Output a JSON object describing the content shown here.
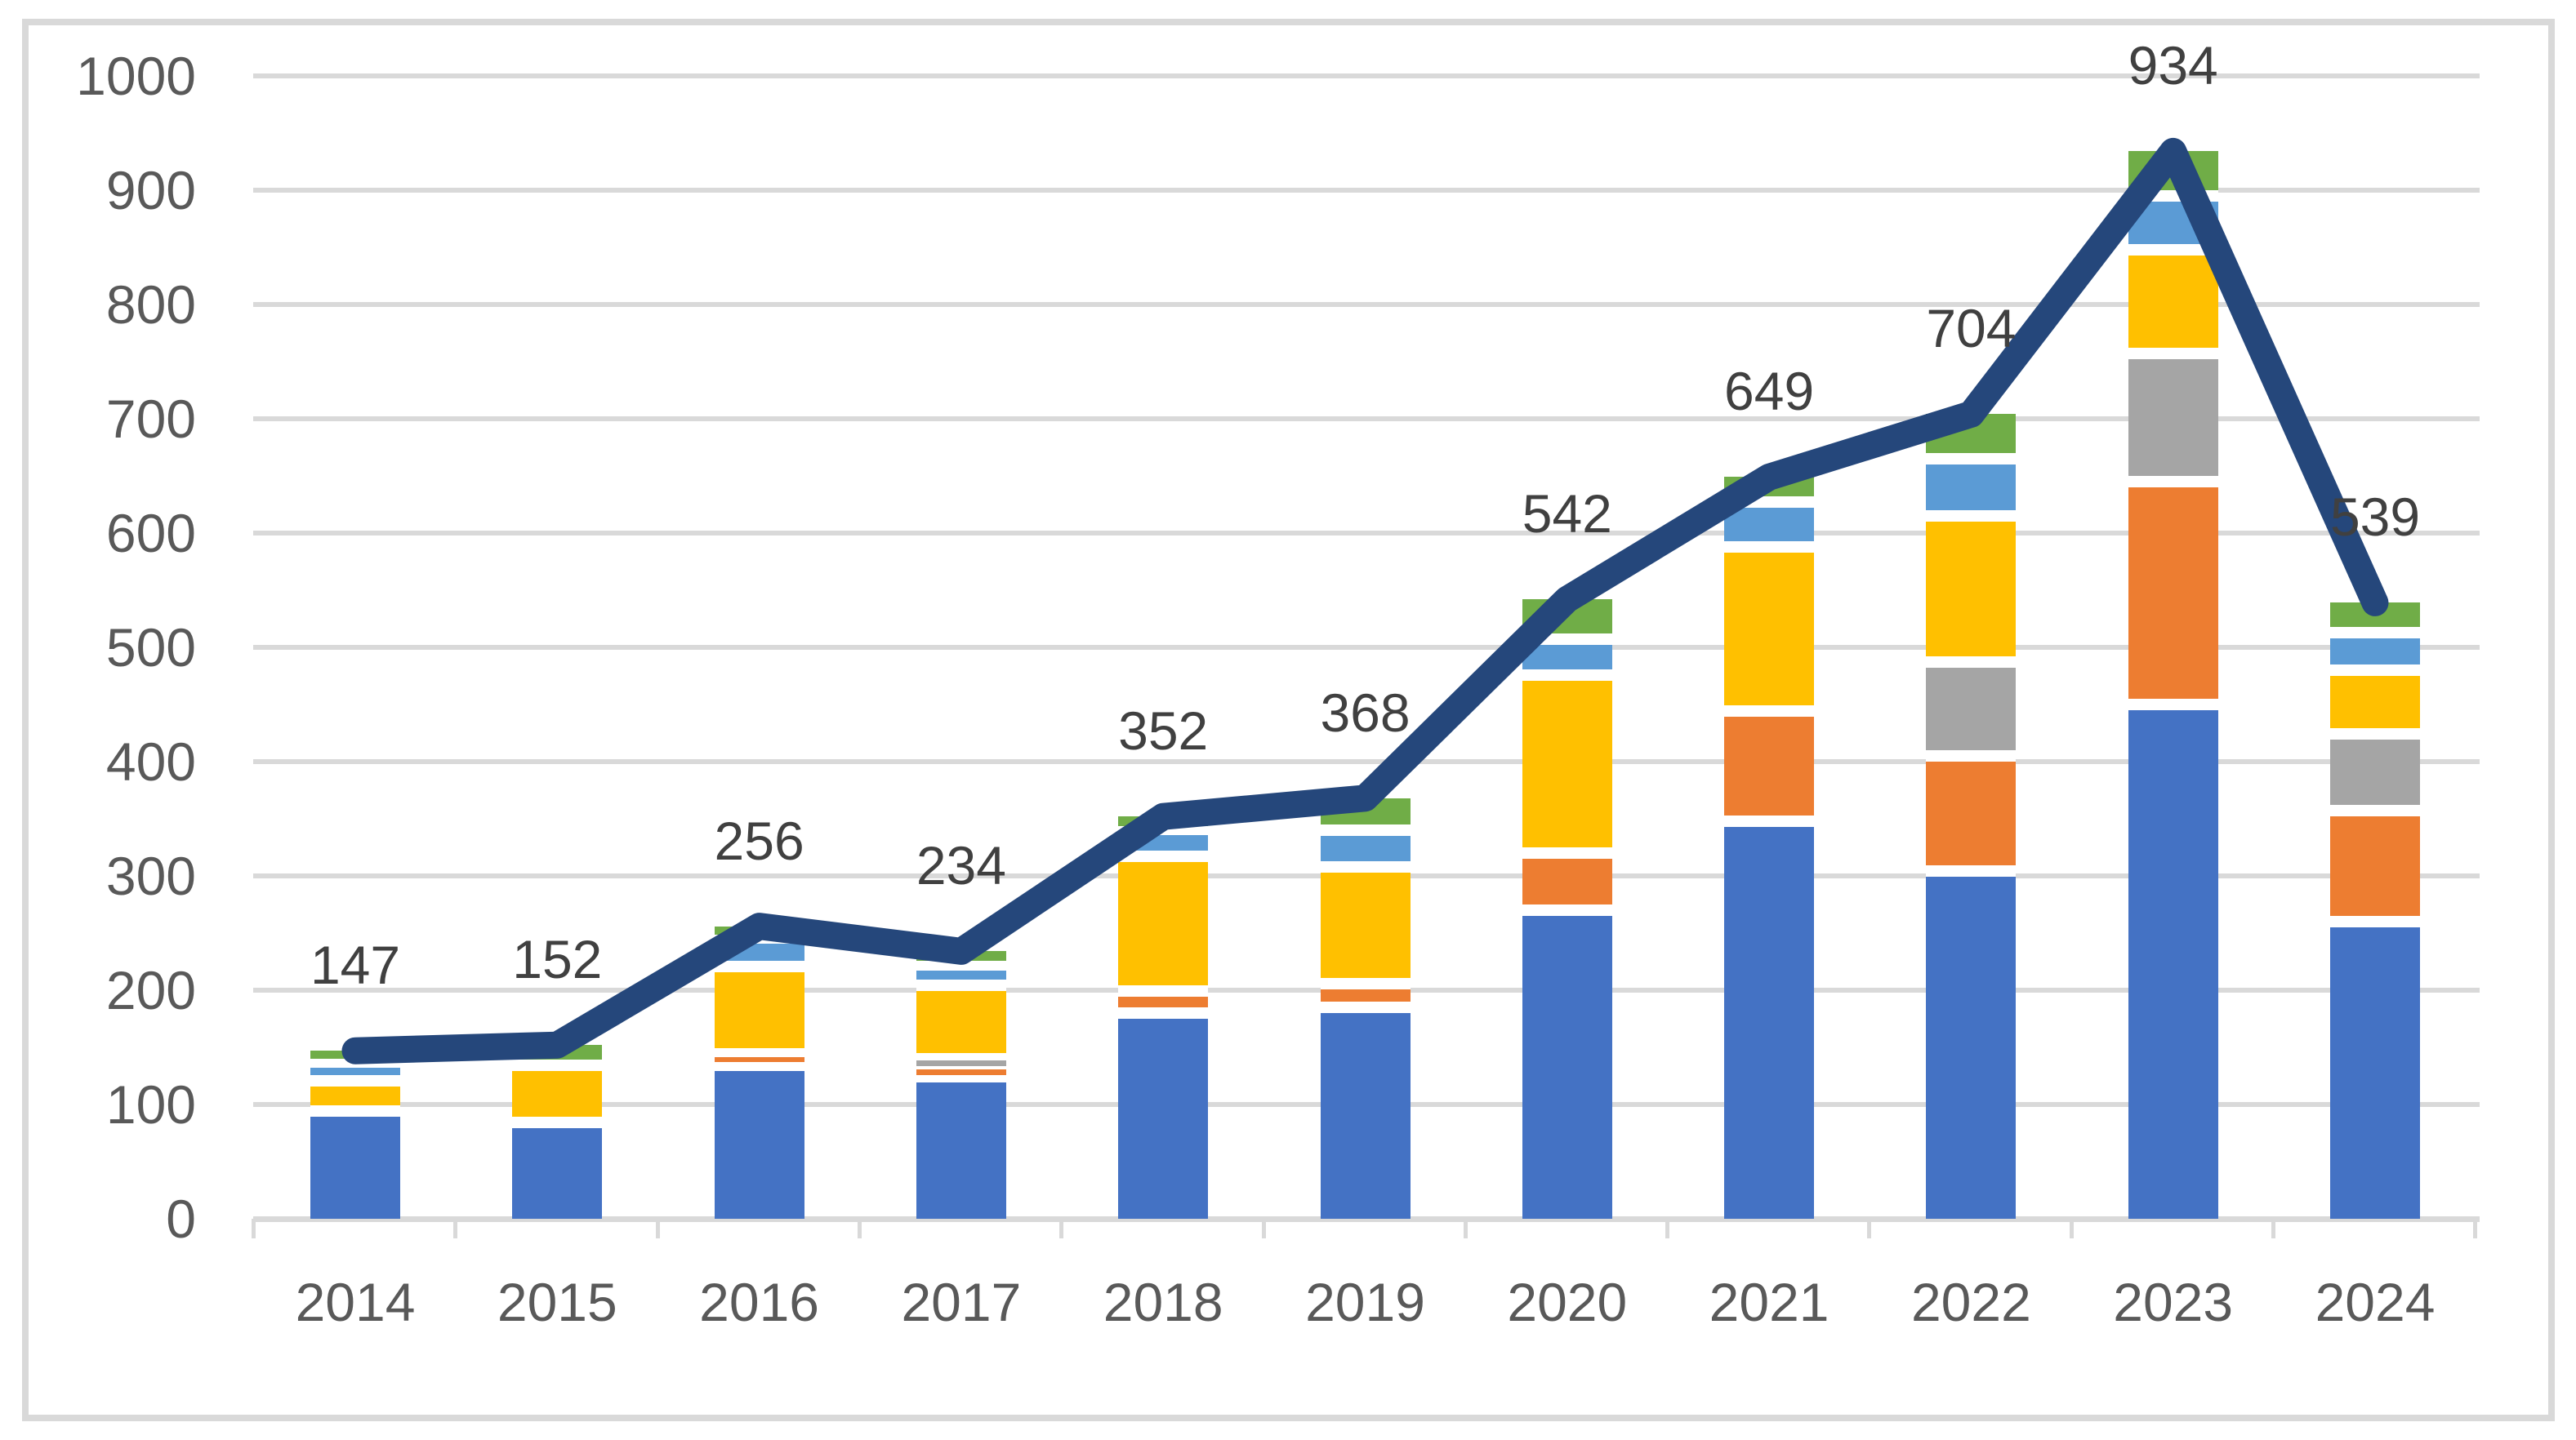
{
  "chart_data": {
    "type": "combo",
    "subtype": "stacked-column-with-line",
    "title": "",
    "xlabel": "",
    "ylabel": "",
    "categories": [
      "2014",
      "2015",
      "2016",
      "2017",
      "2018",
      "2019",
      "2020",
      "2021",
      "2022",
      "2023",
      "2024"
    ],
    "y_axis_ticks": [
      "0",
      "100",
      "200",
      "300",
      "400",
      "500",
      "600",
      "700",
      "800",
      "900",
      "1000"
    ],
    "ylim": [
      0,
      1000
    ],
    "ytick_step": 100,
    "grid": true,
    "legend": "none",
    "stacked_bar_series": [
      {
        "name": "series-blue",
        "color": "#4472C4",
        "values": [
          94,
          84,
          134,
          124,
          180,
          185,
          270,
          348,
          304,
          450,
          260
        ]
      },
      {
        "name": "series-orange",
        "color": "#ED7D31",
        "values": [
          0,
          0,
          10,
          8,
          19,
          21,
          50,
          96,
          101,
          195,
          97
        ]
      },
      {
        "name": "series-gray",
        "color": "#A5A5A5",
        "values": [
          0,
          0,
          0,
          8,
          0,
          0,
          0,
          0,
          82,
          112,
          67
        ]
      },
      {
        "name": "series-yellow",
        "color": "#FFC000",
        "values": [
          27,
          50,
          77,
          64,
          118,
          102,
          156,
          144,
          128,
          91,
          56
        ]
      },
      {
        "name": "series-light-blue",
        "color": "#5B9BD5",
        "values": [
          16,
          0,
          25,
          18,
          24,
          32,
          31,
          39,
          50,
          47,
          33
        ]
      },
      {
        "name": "series-green",
        "color": "#70AD47",
        "values": [
          10,
          18,
          10,
          12,
          11,
          28,
          35,
          22,
          39,
          39,
          26
        ]
      }
    ],
    "line_series": {
      "name": "total-line",
      "color": "#25477B",
      "values": [
        147,
        152,
        256,
        234,
        352,
        368,
        542,
        649,
        704,
        934,
        539
      ]
    },
    "data_labels": [
      "147",
      "152",
      "256",
      "234",
      "352",
      "368",
      "542",
      "649",
      "704",
      "934",
      "539"
    ]
  },
  "colors": {
    "gridline": "#D9D9D9",
    "chart_border": "#D9D9D9",
    "axis_label": "#595959",
    "data_label": "#404040",
    "background": "#FFFFFF"
  }
}
